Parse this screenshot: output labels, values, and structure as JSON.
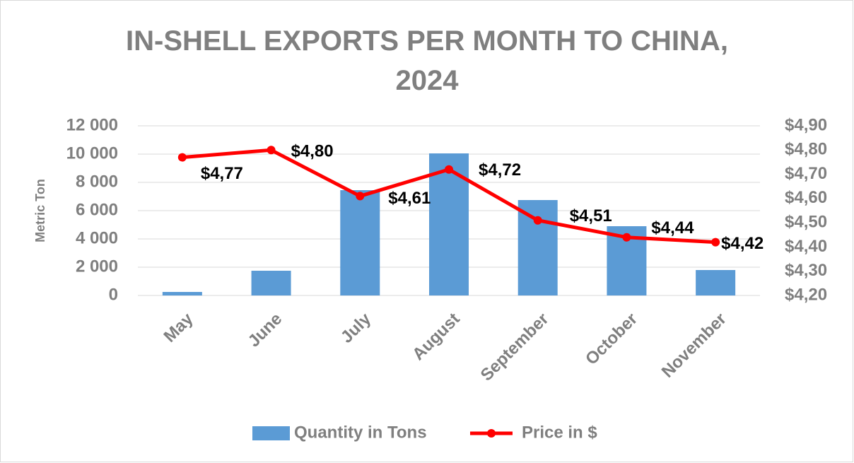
{
  "chart_data": {
    "type": "bar",
    "title": "IN-SHELL EXPORTS PER MONTH TO CHINA, 2024",
    "y_label": "Metric Ton",
    "categories": [
      "May",
      "June",
      "July",
      "August",
      "September",
      "October",
      "November"
    ],
    "series": [
      {
        "name": "Quantity in Tons",
        "type": "bar",
        "color": "#5b9bd5",
        "values": [
          250,
          1750,
          7450,
          10050,
          6750,
          4900,
          1800
        ]
      },
      {
        "name": "Price in $",
        "type": "line",
        "axis": "y2",
        "color": "#ff0000",
        "values": [
          4.77,
          4.8,
          4.61,
          4.72,
          4.51,
          4.44,
          4.42
        ],
        "value_labels": [
          "$4,77",
          "$4,80",
          "$4,61",
          "$4,72",
          "$4,51",
          "$4,44",
          "$4,42"
        ]
      }
    ],
    "ylim": [
      0,
      12000
    ],
    "yticks": [
      0,
      {
        "value": 2000,
        "label": "2 000"
      },
      {
        "value": 4000,
        "label": "4 000"
      },
      {
        "value": 6000,
        "label": "6 000"
      },
      {
        "value": 8000,
        "label": "8 000"
      },
      {
        "value": 10000,
        "label": "10 000"
      },
      {
        "value": 12000,
        "label": "12 000"
      }
    ],
    "y2lim": [
      4.2,
      4.9
    ],
    "y2ticks": [
      {
        "value": 4.2,
        "label": "$4,20"
      },
      {
        "value": 4.3,
        "label": "$4,30"
      },
      {
        "value": 4.4,
        "label": "$4,40"
      },
      {
        "value": 4.5,
        "label": "$4,50"
      },
      {
        "value": 4.6,
        "label": "$4,60"
      },
      {
        "value": 4.7,
        "label": "$4,70"
      },
      {
        "value": 4.8,
        "label": "$4,80"
      },
      {
        "value": 4.9,
        "label": "$4,90"
      }
    ],
    "grid": true,
    "legend": "bottom"
  }
}
